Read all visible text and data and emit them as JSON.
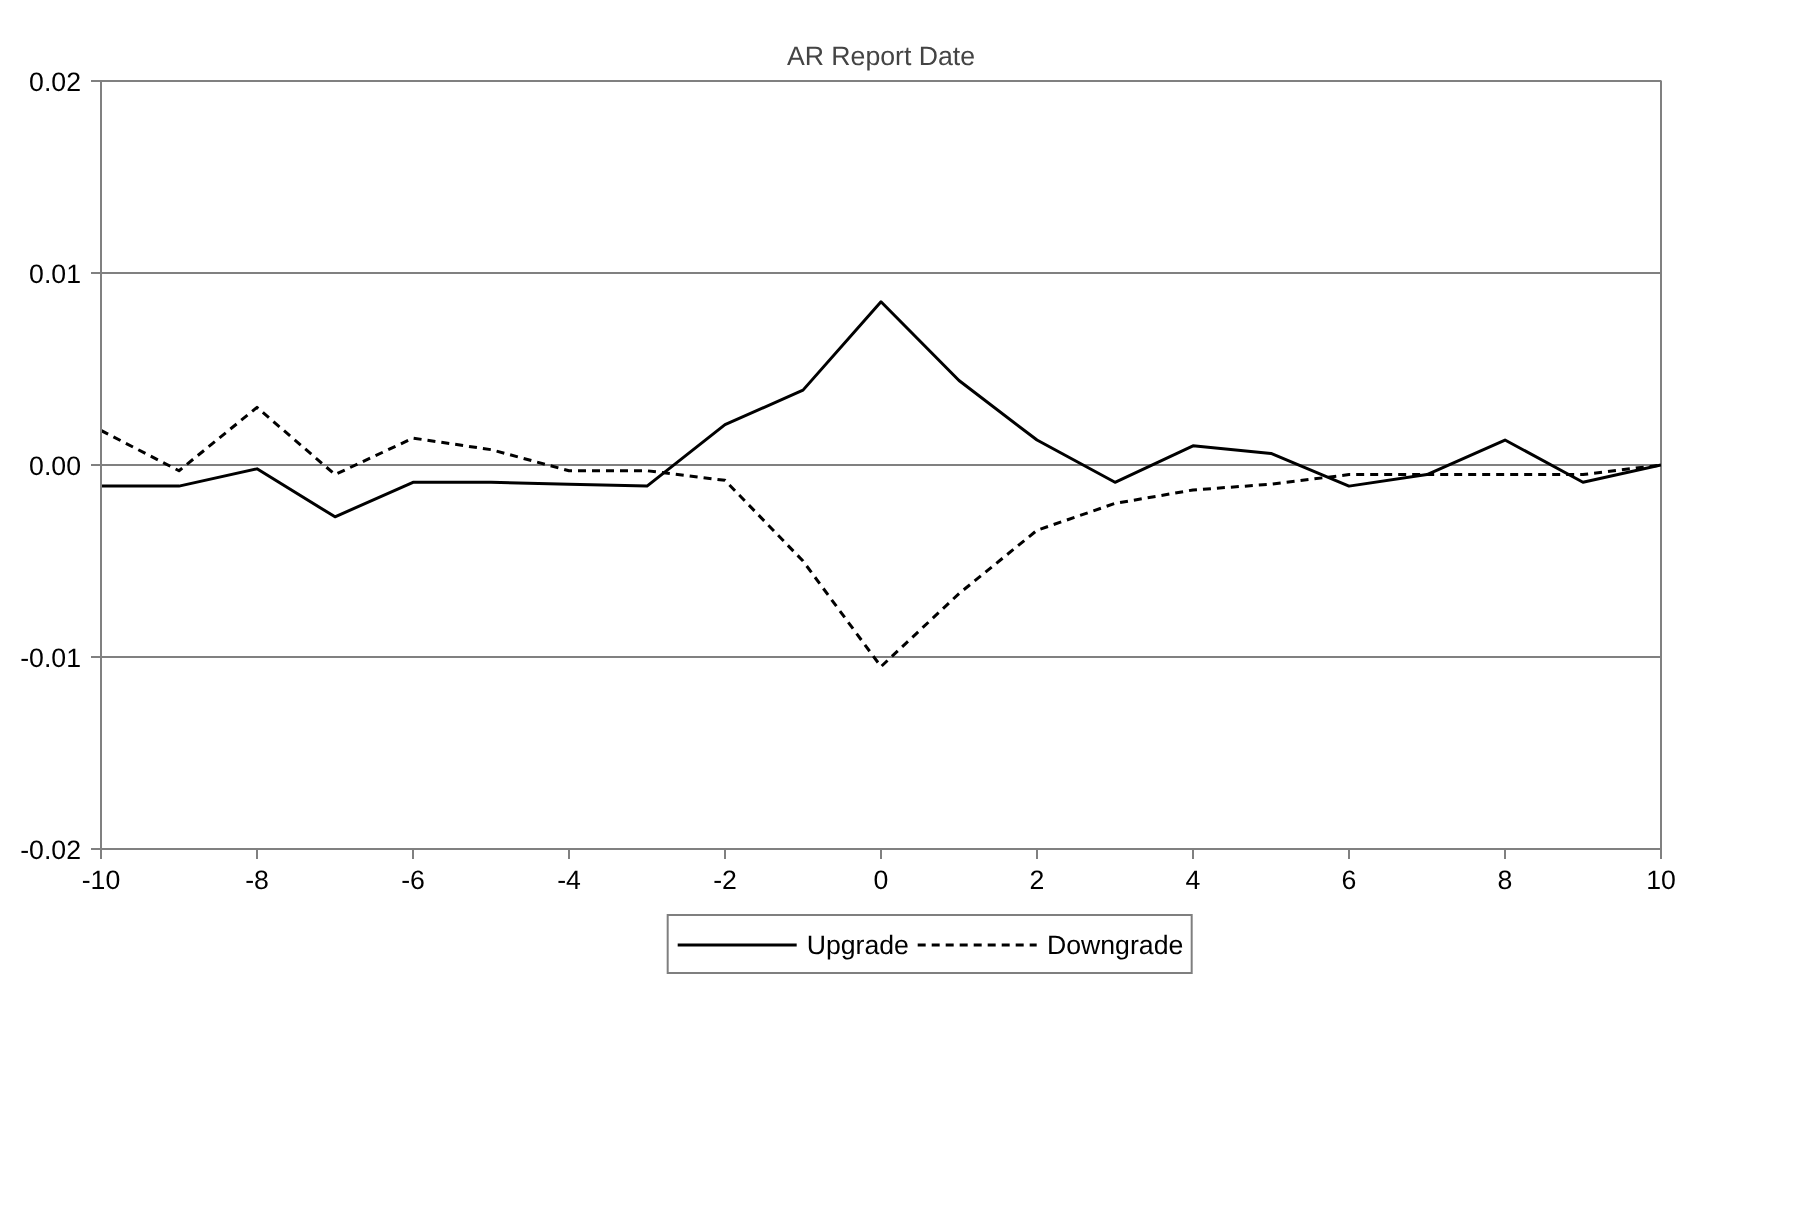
{
  "chart_data": {
    "type": "line",
    "title": "AR Report Date",
    "x": [
      -10,
      -9,
      -8,
      -7,
      -6,
      -5,
      -4,
      -3,
      -2,
      -1,
      0,
      1,
      2,
      3,
      4,
      5,
      6,
      7,
      8,
      9,
      10
    ],
    "series": [
      {
        "name": "Upgrade",
        "color": "#000000",
        "line_style": "solid",
        "values": [
          -0.0011,
          -0.0011,
          -0.0002,
          -0.0027,
          -0.0009,
          -0.0009,
          -0.001,
          -0.0011,
          0.0021,
          0.0039,
          0.0085,
          0.0044,
          0.0013,
          -0.0009,
          0.001,
          0.0006,
          -0.0011,
          -0.0005,
          0.0013,
          -0.0009,
          0.0
        ]
      },
      {
        "name": "Downgrade",
        "color": "#000000",
        "line_style": "dashed",
        "values": [
          0.0018,
          -0.0003,
          0.003,
          -0.0005,
          0.0014,
          0.0008,
          -0.0003,
          -0.0003,
          -0.0008,
          -0.005,
          -0.0105,
          -0.0067,
          -0.0034,
          -0.002,
          -0.0013,
          -0.001,
          -0.0005,
          -0.0005,
          -0.0005,
          -0.0005,
          0.0
        ]
      }
    ],
    "xlim": [
      -10,
      10
    ],
    "xticks": [
      -10,
      -8,
      -6,
      -4,
      -2,
      0,
      2,
      4,
      6,
      8,
      10
    ],
    "ylim": [
      -0.02,
      0.02
    ],
    "yticks": [
      {
        "value": -0.02,
        "label": "-0.02"
      },
      {
        "value": -0.01,
        "label": "-0.01"
      },
      {
        "value": 0,
        "label": "0.00"
      },
      {
        "value": 0.01,
        "label": "0.01"
      },
      {
        "value": 0.02,
        "label": "0.02"
      }
    ],
    "grid": "y",
    "legend": "bottom",
    "marker": "none"
  }
}
